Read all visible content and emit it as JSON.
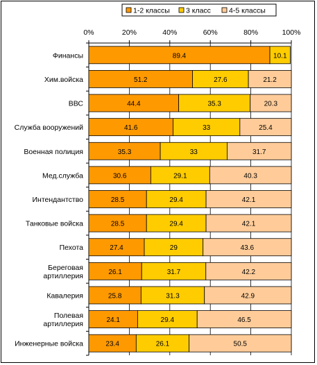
{
  "chart_data": {
    "type": "bar",
    "orientation": "horizontal",
    "stacked": "percent",
    "legend_position": "top-right",
    "grid": "vertical",
    "xlim": [
      0,
      100
    ],
    "x_tick_labels": [
      "0%",
      "20%",
      "40%",
      "60%",
      "80%",
      "100%"
    ],
    "categories": [
      [
        "Финансы"
      ],
      [
        "Хим.войска"
      ],
      [
        "ВВС"
      ],
      [
        "Служба вооружений"
      ],
      [
        "Военная полиция"
      ],
      [
        "Мед.служба"
      ],
      [
        "Интендантство"
      ],
      [
        "Танковые войска"
      ],
      [
        "Пехота"
      ],
      [
        "Береговая",
        "артиллерия"
      ],
      [
        "Кавалерия"
      ],
      [
        "Полевая",
        "артиллерия"
      ],
      [
        "Инженерные войска"
      ]
    ],
    "series": [
      {
        "name": "1-2 классы",
        "color": "#FF9900",
        "values": [
          89.4,
          51.2,
          44.4,
          41.6,
          35.3,
          30.6,
          28.5,
          28.5,
          27.4,
          26.1,
          25.8,
          24.1,
          23.4
        ]
      },
      {
        "name": "3 класс",
        "color": "#FFCC00",
        "values": [
          10.1,
          27.6,
          35.3,
          33,
          33,
          29.1,
          29.4,
          29.4,
          29,
          31.7,
          31.3,
          29.4,
          26.1
        ]
      },
      {
        "name": "4-5 классы",
        "color": "#FFCC99",
        "values": [
          null,
          21.2,
          20.3,
          25.4,
          31.7,
          40.3,
          42.1,
          42.1,
          43.6,
          42.2,
          42.9,
          46.5,
          50.5
        ]
      }
    ]
  }
}
